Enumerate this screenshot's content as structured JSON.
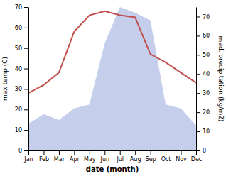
{
  "chart_data": {
    "type": "line",
    "categories": [
      "Jan",
      "Feb",
      "Mar",
      "Apr",
      "May",
      "Jun",
      "Jul",
      "Aug",
      "Sep",
      "Oct",
      "Nov",
      "Dec"
    ],
    "xlabel": "date (month)",
    "ylabel": "max temp (C)",
    "y2label": "med. precipitation (kg/m2)",
    "series": [
      {
        "type": "area",
        "axis": "y2",
        "color": "#bfc9e8",
        "values": [
          14,
          19,
          16,
          22,
          24,
          56,
          75,
          72,
          68,
          24,
          22,
          13
        ]
      },
      {
        "type": "line",
        "color": "#c0504d",
        "values": [
          28,
          32,
          38,
          58,
          66,
          68,
          66,
          65,
          47,
          43,
          38,
          33
        ]
      }
    ],
    "ylim": [
      0,
      70
    ],
    "yticks": [
      0,
      10,
      20,
      30,
      40,
      50,
      60,
      70
    ],
    "y2lim": [
      0,
      75
    ],
    "y2ticks": [
      0,
      10,
      20,
      30,
      40,
      50,
      60,
      70
    ],
    "grid": false
  }
}
